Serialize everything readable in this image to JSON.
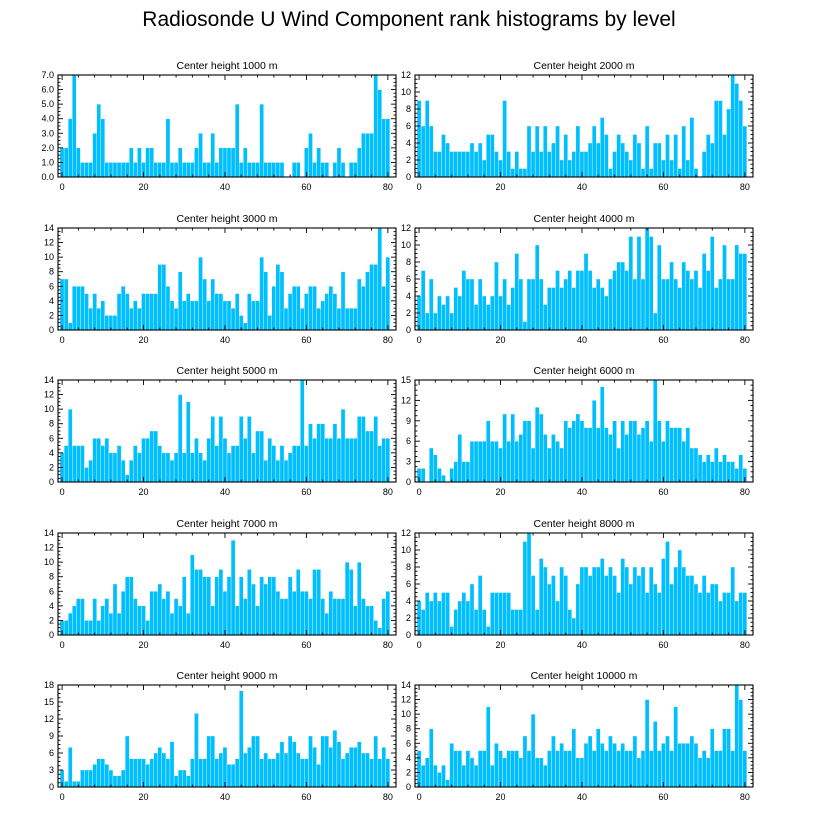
{
  "title": "Radiosonde U Wind Component rank histograms by level",
  "colors": {
    "bar": "#00BFFF",
    "frame": "#000000",
    "background": "#ffffff"
  },
  "chart_data": [
    {
      "type": "bar",
      "title": "Center height 1000 m",
      "xlim": [
        -1,
        82
      ],
      "ylim": [
        0,
        7
      ],
      "xticks": [
        0,
        20,
        40,
        60,
        80
      ],
      "yticks": [
        0,
        1,
        2,
        3,
        4,
        5,
        6,
        7
      ],
      "ytick_labels": [
        "0.0",
        "1.0",
        "2.0",
        "3.0",
        "4.0",
        "5.0",
        "6.0",
        "7.0"
      ],
      "values": [
        2,
        2,
        4,
        7,
        2,
        1,
        1,
        1,
        3,
        5,
        4,
        1,
        1,
        1,
        1,
        1,
        1,
        2,
        1,
        2,
        1,
        2,
        2,
        1,
        1,
        1,
        4,
        1,
        1,
        2,
        1,
        1,
        1,
        2,
        3,
        1,
        1,
        3,
        1,
        2,
        2,
        2,
        2,
        5,
        1,
        2,
        1,
        1,
        1,
        5,
        1,
        1,
        1,
        1,
        1,
        0,
        0,
        1,
        1,
        0,
        2,
        3,
        1,
        2,
        1,
        1,
        0,
        1,
        2,
        1,
        0,
        1,
        1,
        2,
        3,
        3,
        3,
        7,
        6,
        4,
        4
      ]
    },
    {
      "type": "bar",
      "title": "Center height 2000 m",
      "xlim": [
        -1,
        82
      ],
      "ylim": [
        0,
        12
      ],
      "xticks": [
        0,
        20,
        40,
        60,
        80
      ],
      "yticks": [
        0,
        2,
        4,
        6,
        8,
        10,
        12
      ],
      "ytick_labels": [
        "0",
        "2",
        "4",
        "6",
        "8",
        "10",
        "12"
      ],
      "values": [
        9,
        6,
        9,
        6,
        3,
        3,
        5,
        4,
        3,
        3,
        3,
        3,
        3,
        4,
        3,
        4,
        2,
        5,
        5,
        3,
        2,
        9,
        3,
        1,
        3,
        1,
        1,
        6,
        3,
        6,
        3,
        6,
        3,
        4,
        6,
        2,
        5,
        2,
        3,
        6,
        3,
        3,
        4,
        6,
        4,
        7,
        5,
        1,
        3,
        5,
        4,
        3,
        2,
        5,
        4,
        1,
        6,
        1,
        4,
        4,
        2,
        5,
        2,
        5,
        1,
        6,
        2,
        7,
        1,
        0,
        3,
        5,
        4,
        9,
        9,
        5,
        8,
        12,
        11,
        9,
        6
      ]
    },
    {
      "type": "bar",
      "title": "Center height 3000 m",
      "xlim": [
        -1,
        82
      ],
      "ylim": [
        0,
        14
      ],
      "xticks": [
        0,
        20,
        40,
        60,
        80
      ],
      "yticks": [
        0,
        2,
        4,
        6,
        8,
        10,
        12,
        14
      ],
      "ytick_labels": [
        "0",
        "2",
        "4",
        "6",
        "8",
        "10",
        "12",
        "14"
      ],
      "values": [
        7,
        7,
        1,
        6,
        6,
        6,
        5,
        3,
        5,
        3,
        4,
        2,
        2,
        2,
        5,
        6,
        5,
        3,
        4,
        3,
        5,
        5,
        5,
        5,
        9,
        9,
        6,
        4,
        3,
        8,
        4,
        5,
        4,
        4,
        10,
        7,
        4,
        7,
        5,
        5,
        4,
        4,
        3,
        5,
        2,
        1,
        5,
        4,
        4,
        10,
        8,
        2,
        6,
        9,
        8,
        3,
        5,
        6,
        6,
        3,
        5,
        6,
        6,
        3,
        4,
        5,
        6,
        5,
        3,
        8,
        3,
        3,
        3,
        7,
        6,
        8,
        9,
        9,
        14,
        6,
        10
      ]
    },
    {
      "type": "bar",
      "title": "Center height 4000 m",
      "xlim": [
        -1,
        82
      ],
      "ylim": [
        0,
        12
      ],
      "xticks": [
        0,
        20,
        40,
        60,
        80
      ],
      "yticks": [
        0,
        2,
        4,
        6,
        8,
        10,
        12
      ],
      "ytick_labels": [
        "0",
        "2",
        "4",
        "6",
        "8",
        "10",
        "12"
      ],
      "values": [
        4,
        7,
        2,
        6,
        2,
        4,
        3,
        4,
        2,
        5,
        4,
        7,
        6,
        6,
        3,
        6,
        4,
        3,
        4,
        8,
        4,
        6,
        3,
        5,
        9,
        6,
        1,
        6,
        6,
        10,
        6,
        3,
        5,
        5,
        7,
        5,
        6,
        7,
        5,
        7,
        7,
        9,
        7,
        5,
        6,
        5,
        4,
        6,
        7,
        8,
        8,
        7,
        11,
        6,
        11,
        6,
        12,
        11,
        2,
        10,
        6,
        6,
        8,
        6,
        5,
        8,
        7,
        6,
        7,
        5,
        9,
        7,
        11,
        5,
        6,
        10,
        6,
        6,
        10,
        9,
        9
      ]
    },
    {
      "type": "bar",
      "title": "Center height 5000 m",
      "xlim": [
        -1,
        82
      ],
      "ylim": [
        0,
        14
      ],
      "xticks": [
        0,
        20,
        40,
        60,
        80
      ],
      "yticks": [
        0,
        2,
        4,
        6,
        8,
        10,
        12,
        14
      ],
      "ytick_labels": [
        "0",
        "2",
        "4",
        "6",
        "8",
        "10",
        "12",
        "14"
      ],
      "values": [
        4,
        5,
        10,
        5,
        5,
        5,
        2,
        3,
        6,
        6,
        5,
        6,
        4,
        4,
        5,
        3,
        1,
        3,
        5,
        4,
        6,
        6,
        7,
        7,
        5,
        4,
        4,
        3,
        4,
        12,
        4,
        11,
        4,
        6,
        4,
        3,
        6,
        9,
        5,
        9,
        6,
        4,
        5,
        5,
        9,
        6,
        9,
        4,
        7,
        7,
        3,
        6,
        5,
        3,
        5,
        3,
        4,
        5,
        5,
        14,
        5,
        8,
        6,
        8,
        8,
        6,
        6,
        8,
        6,
        10,
        6,
        6,
        6,
        9,
        9,
        7,
        7,
        9,
        5,
        6,
        6
      ]
    },
    {
      "type": "bar",
      "title": "Center height 6000 m",
      "xlim": [
        -1,
        82
      ],
      "ylim": [
        0,
        15
      ],
      "xticks": [
        0,
        20,
        40,
        60,
        80
      ],
      "yticks": [
        0,
        3,
        6,
        9,
        12,
        15
      ],
      "ytick_labels": [
        "0",
        "3",
        "6",
        "9",
        "12",
        "15"
      ],
      "values": [
        2,
        2,
        0,
        5,
        4,
        2,
        1,
        0,
        2,
        3,
        7,
        3,
        3,
        6,
        6,
        6,
        6,
        9,
        6,
        6,
        5,
        10,
        6,
        10,
        6,
        7,
        9,
        9,
        5,
        11,
        10,
        7,
        5,
        7,
        6,
        5,
        9,
        8,
        9,
        10,
        9,
        8,
        8,
        12,
        8,
        14,
        8,
        7,
        9,
        5,
        9,
        7,
        9,
        9,
        7,
        8,
        9,
        6,
        15,
        9,
        6,
        9,
        8,
        8,
        8,
        6,
        8,
        5,
        5,
        4,
        3,
        4,
        3,
        5,
        3,
        4,
        3,
        3,
        2,
        4,
        2
      ]
    },
    {
      "type": "bar",
      "title": "Center height 7000 m",
      "xlim": [
        -1,
        82
      ],
      "ylim": [
        0,
        14
      ],
      "xticks": [
        0,
        20,
        40,
        60,
        80
      ],
      "yticks": [
        0,
        2,
        4,
        6,
        8,
        10,
        12,
        14
      ],
      "ytick_labels": [
        "0",
        "2",
        "4",
        "6",
        "8",
        "10",
        "12",
        "14"
      ],
      "values": [
        2,
        2,
        3,
        4,
        5,
        5,
        2,
        2,
        5,
        2,
        4,
        5,
        3,
        7,
        3,
        6,
        8,
        8,
        5,
        4,
        4,
        2,
        6,
        6,
        7,
        5,
        6,
        3,
        5,
        4,
        8,
        3,
        11,
        9,
        9,
        8,
        8,
        4,
        8,
        9,
        6,
        8,
        13,
        4,
        8,
        5,
        9,
        7,
        4,
        8,
        7,
        8,
        8,
        6,
        5,
        5,
        8,
        6,
        9,
        6,
        6,
        5,
        9,
        9,
        5,
        3,
        6,
        5,
        5,
        5,
        10,
        9,
        4,
        10,
        5,
        4,
        4,
        2,
        1,
        5,
        6
      ]
    },
    {
      "type": "bar",
      "title": "Center height 8000 m",
      "xlim": [
        -1,
        82
      ],
      "ylim": [
        0,
        12
      ],
      "xticks": [
        0,
        20,
        40,
        60,
        80
      ],
      "yticks": [
        0,
        2,
        4,
        6,
        8,
        10,
        12
      ],
      "ytick_labels": [
        "0",
        "2",
        "4",
        "6",
        "8",
        "10",
        "12"
      ],
      "values": [
        4,
        3,
        5,
        4,
        5,
        4,
        5,
        5,
        1,
        3,
        4,
        5,
        4,
        6,
        3,
        7,
        3,
        1,
        5,
        5,
        5,
        5,
        5,
        3,
        3,
        3,
        11,
        12,
        7,
        3,
        9,
        8,
        6,
        7,
        4,
        8,
        7,
        3,
        2,
        6,
        8,
        8,
        7,
        8,
        8,
        9,
        7,
        8,
        7,
        5,
        9,
        8,
        6,
        8,
        7,
        8,
        5,
        8,
        6,
        5,
        9,
        11,
        6,
        8,
        10,
        8,
        7,
        7,
        6,
        5,
        7,
        5,
        6,
        6,
        4,
        5,
        5,
        8,
        4,
        5,
        5
      ]
    },
    {
      "type": "bar",
      "title": "Center height 9000 m",
      "xlim": [
        -1,
        82
      ],
      "ylim": [
        0,
        18
      ],
      "xticks": [
        0,
        20,
        40,
        60,
        80
      ],
      "yticks": [
        0,
        3,
        6,
        9,
        12,
        15,
        18
      ],
      "ytick_labels": [
        "0",
        "3",
        "6",
        "9",
        "12",
        "15",
        "18"
      ],
      "values": [
        3,
        1,
        7,
        1,
        1,
        3,
        3,
        3,
        4,
        5,
        5,
        4,
        3,
        2,
        2,
        3,
        9,
        5,
        5,
        5,
        5,
        4,
        5,
        6,
        7,
        6,
        5,
        8,
        2,
        3,
        3,
        2,
        5,
        13,
        5,
        5,
        9,
        9,
        5,
        6,
        7,
        4,
        4,
        5,
        17,
        6,
        7,
        9,
        9,
        5,
        6,
        5,
        5,
        6,
        8,
        6,
        9,
        8,
        6,
        5,
        5,
        9,
        7,
        4,
        9,
        9,
        7,
        10,
        8,
        5,
        6,
        7,
        7,
        8,
        6,
        6,
        5,
        9,
        5,
        7,
        5
      ]
    },
    {
      "type": "bar",
      "title": "Center height 10000 m",
      "xlim": [
        -1,
        82
      ],
      "ylim": [
        0,
        14
      ],
      "xticks": [
        0,
        20,
        40,
        60,
        80
      ],
      "yticks": [
        0,
        2,
        4,
        6,
        8,
        10,
        12,
        14
      ],
      "ytick_labels": [
        "0",
        "2",
        "4",
        "6",
        "8",
        "10",
        "12",
        "14"
      ],
      "values": [
        5,
        3,
        4,
        8,
        3,
        2,
        3,
        1,
        6,
        5,
        5,
        3,
        5,
        4,
        3,
        5,
        5,
        11,
        3,
        6,
        5,
        4,
        5,
        5,
        5,
        4,
        7,
        5,
        10,
        4,
        4,
        3,
        5,
        7,
        5,
        6,
        5,
        5,
        8,
        4,
        4,
        6,
        7,
        5,
        8,
        6,
        5,
        7,
        6,
        5,
        6,
        5,
        5,
        7,
        4,
        5,
        12,
        5,
        9,
        5,
        6,
        7,
        5,
        11,
        6,
        6,
        6,
        7,
        6,
        4,
        5,
        4,
        8,
        5,
        5,
        8,
        8,
        5,
        14,
        12,
        5
      ]
    }
  ]
}
